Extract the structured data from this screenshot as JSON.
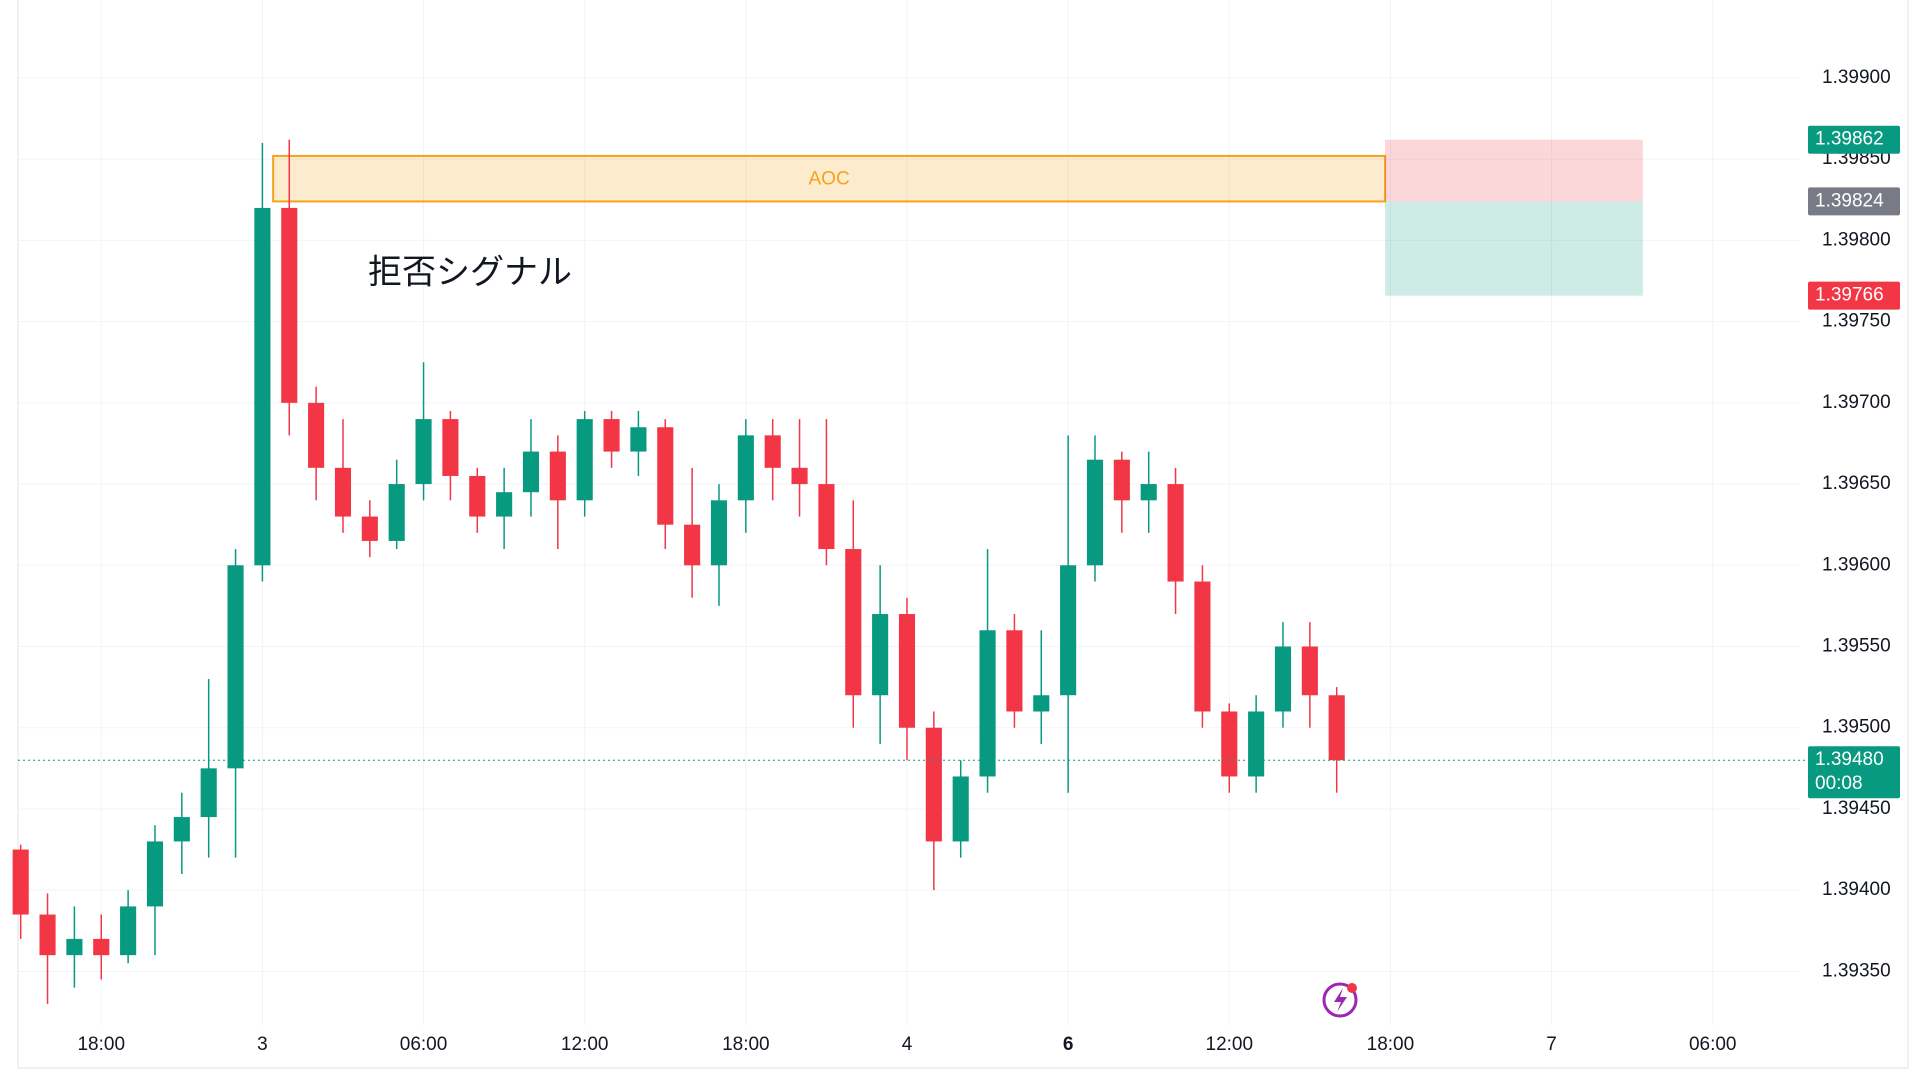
{
  "chart_data": {
    "type": "candlestick",
    "x": [
      15,
      16,
      17,
      18,
      19,
      20,
      21,
      22,
      23,
      24,
      25,
      26,
      27,
      28,
      29,
      30,
      31,
      32,
      33,
      34,
      35,
      36,
      37,
      38,
      39,
      40,
      41,
      42,
      43,
      44,
      45,
      46,
      47,
      48,
      49,
      50,
      51,
      52,
      53,
      54,
      55,
      56,
      57,
      58,
      59,
      60,
      61,
      62,
      63,
      64
    ],
    "open": [
      1.39425,
      1.39385,
      1.3936,
      1.3937,
      1.3936,
      1.3939,
      1.3943,
      1.39445,
      1.39475,
      1.396,
      1.3982,
      1.397,
      1.3966,
      1.3963,
      1.39615,
      1.3965,
      1.3969,
      1.39655,
      1.3963,
      1.39645,
      1.3967,
      1.3964,
      1.3969,
      1.3967,
      1.39685,
      1.39625,
      1.396,
      1.3964,
      1.3968,
      1.3966,
      1.3965,
      1.3961,
      1.3952,
      1.3957,
      1.395,
      1.3943,
      1.3947,
      1.3956,
      1.3951,
      1.3952,
      1.396,
      1.39665,
      1.3964,
      1.3965,
      1.3959,
      1.3951,
      1.3947,
      1.3951,
      1.3955,
      1.3952
    ],
    "high": [
      1.39428,
      1.39398,
      1.3939,
      1.39385,
      1.394,
      1.3944,
      1.3946,
      1.3953,
      1.3961,
      1.3986,
      1.39862,
      1.3971,
      1.3969,
      1.3964,
      1.39665,
      1.39725,
      1.39695,
      1.3966,
      1.3966,
      1.3969,
      1.3968,
      1.39695,
      1.39695,
      1.39695,
      1.3969,
      1.3966,
      1.3965,
      1.3969,
      1.3969,
      1.3969,
      1.3969,
      1.3964,
      1.396,
      1.3958,
      1.3951,
      1.3948,
      1.3961,
      1.3957,
      1.3956,
      1.3968,
      1.3968,
      1.3967,
      1.3967,
      1.3966,
      1.396,
      1.39515,
      1.3952,
      1.39565,
      1.39565,
      1.39525
    ],
    "low": [
      1.3937,
      1.3933,
      1.3934,
      1.39345,
      1.39355,
      1.3936,
      1.3941,
      1.3942,
      1.3942,
      1.3959,
      1.3968,
      1.3964,
      1.3962,
      1.39605,
      1.3961,
      1.3964,
      1.3964,
      1.3962,
      1.3961,
      1.3963,
      1.3961,
      1.3963,
      1.3966,
      1.39655,
      1.3961,
      1.3958,
      1.39575,
      1.3962,
      1.3964,
      1.3963,
      1.396,
      1.395,
      1.3949,
      1.3948,
      1.394,
      1.3942,
      1.3946,
      1.395,
      1.3949,
      1.3946,
      1.3959,
      1.3962,
      1.3962,
      1.3957,
      1.395,
      1.3946,
      1.3946,
      1.395,
      1.395,
      1.3946
    ],
    "close": [
      1.39385,
      1.3936,
      1.3937,
      1.3936,
      1.3939,
      1.3943,
      1.39445,
      1.39475,
      1.396,
      1.3982,
      1.397,
      1.3966,
      1.3963,
      1.39615,
      1.3965,
      1.3969,
      1.39655,
      1.3963,
      1.39645,
      1.3967,
      1.3964,
      1.3969,
      1.3967,
      1.39685,
      1.39625,
      1.396,
      1.3964,
      1.3968,
      1.3966,
      1.3965,
      1.3961,
      1.3952,
      1.3957,
      1.395,
      1.3943,
      1.3947,
      1.3956,
      1.3951,
      1.3952,
      1.396,
      1.39665,
      1.3964,
      1.3965,
      1.3959,
      1.3951,
      1.3947,
      1.3951,
      1.3955,
      1.3952,
      1.3948
    ],
    "up_color": "#089981",
    "down_color": "#f23645",
    "xlim": [
      14.9,
      81.25
    ],
    "xticks": [
      {
        "value": 18,
        "label": "18:00"
      },
      {
        "value": 24,
        "label": "3"
      },
      {
        "value": 30,
        "label": "06:00"
      },
      {
        "value": 36,
        "label": "12:00"
      },
      {
        "value": 42,
        "label": "18:00"
      },
      {
        "value": 48,
        "label": "4"
      },
      {
        "value": 54,
        "label": "6",
        "bold": true
      },
      {
        "value": 60,
        "label": "12:00"
      },
      {
        "value": 66,
        "label": "18:00"
      },
      {
        "value": 72,
        "label": "7"
      },
      {
        "value": 78,
        "label": "06:00"
      }
    ],
    "ylim": [
      1.39317,
      1.39948
    ],
    "yticks": [
      {
        "value": 1.3935,
        "label": "1.39350"
      },
      {
        "value": 1.394,
        "label": "1.39400"
      },
      {
        "value": 1.3945,
        "label": "1.39450"
      },
      {
        "value": 1.395,
        "label": "1.39500"
      },
      {
        "value": 1.3955,
        "label": "1.39550"
      },
      {
        "value": 1.396,
        "label": "1.39600"
      },
      {
        "value": 1.3965,
        "label": "1.39650"
      },
      {
        "value": 1.397,
        "label": "1.39700"
      },
      {
        "value": 1.3975,
        "label": "1.39750"
      },
      {
        "value": 1.398,
        "label": "1.39800"
      },
      {
        "value": 1.3985,
        "label": "1.39850"
      },
      {
        "value": 1.399,
        "label": "1.39900"
      }
    ],
    "grid": true,
    "zone": {
      "label": "AOC",
      "top": 1.39852,
      "bottom": 1.39824,
      "x0": 24.4,
      "x1": 65.8,
      "color": "#f7a21b"
    },
    "position": {
      "top": 1.39862,
      "entry": 1.39824,
      "bottom": 1.39766,
      "x0": 65.8,
      "x1": 75.4
    },
    "price_labels": [
      {
        "value": 1.39862,
        "label": "1.39862",
        "color": "#089981"
      },
      {
        "value": 1.39824,
        "label": "1.39824",
        "color": "#787b86"
      },
      {
        "value": 1.39766,
        "label": "1.39766",
        "color": "#f23645"
      },
      {
        "value": 1.3948,
        "label": "1.39480",
        "color": "#089981",
        "countdown": "00:08"
      }
    ],
    "annotation": "拒否シグナル"
  }
}
